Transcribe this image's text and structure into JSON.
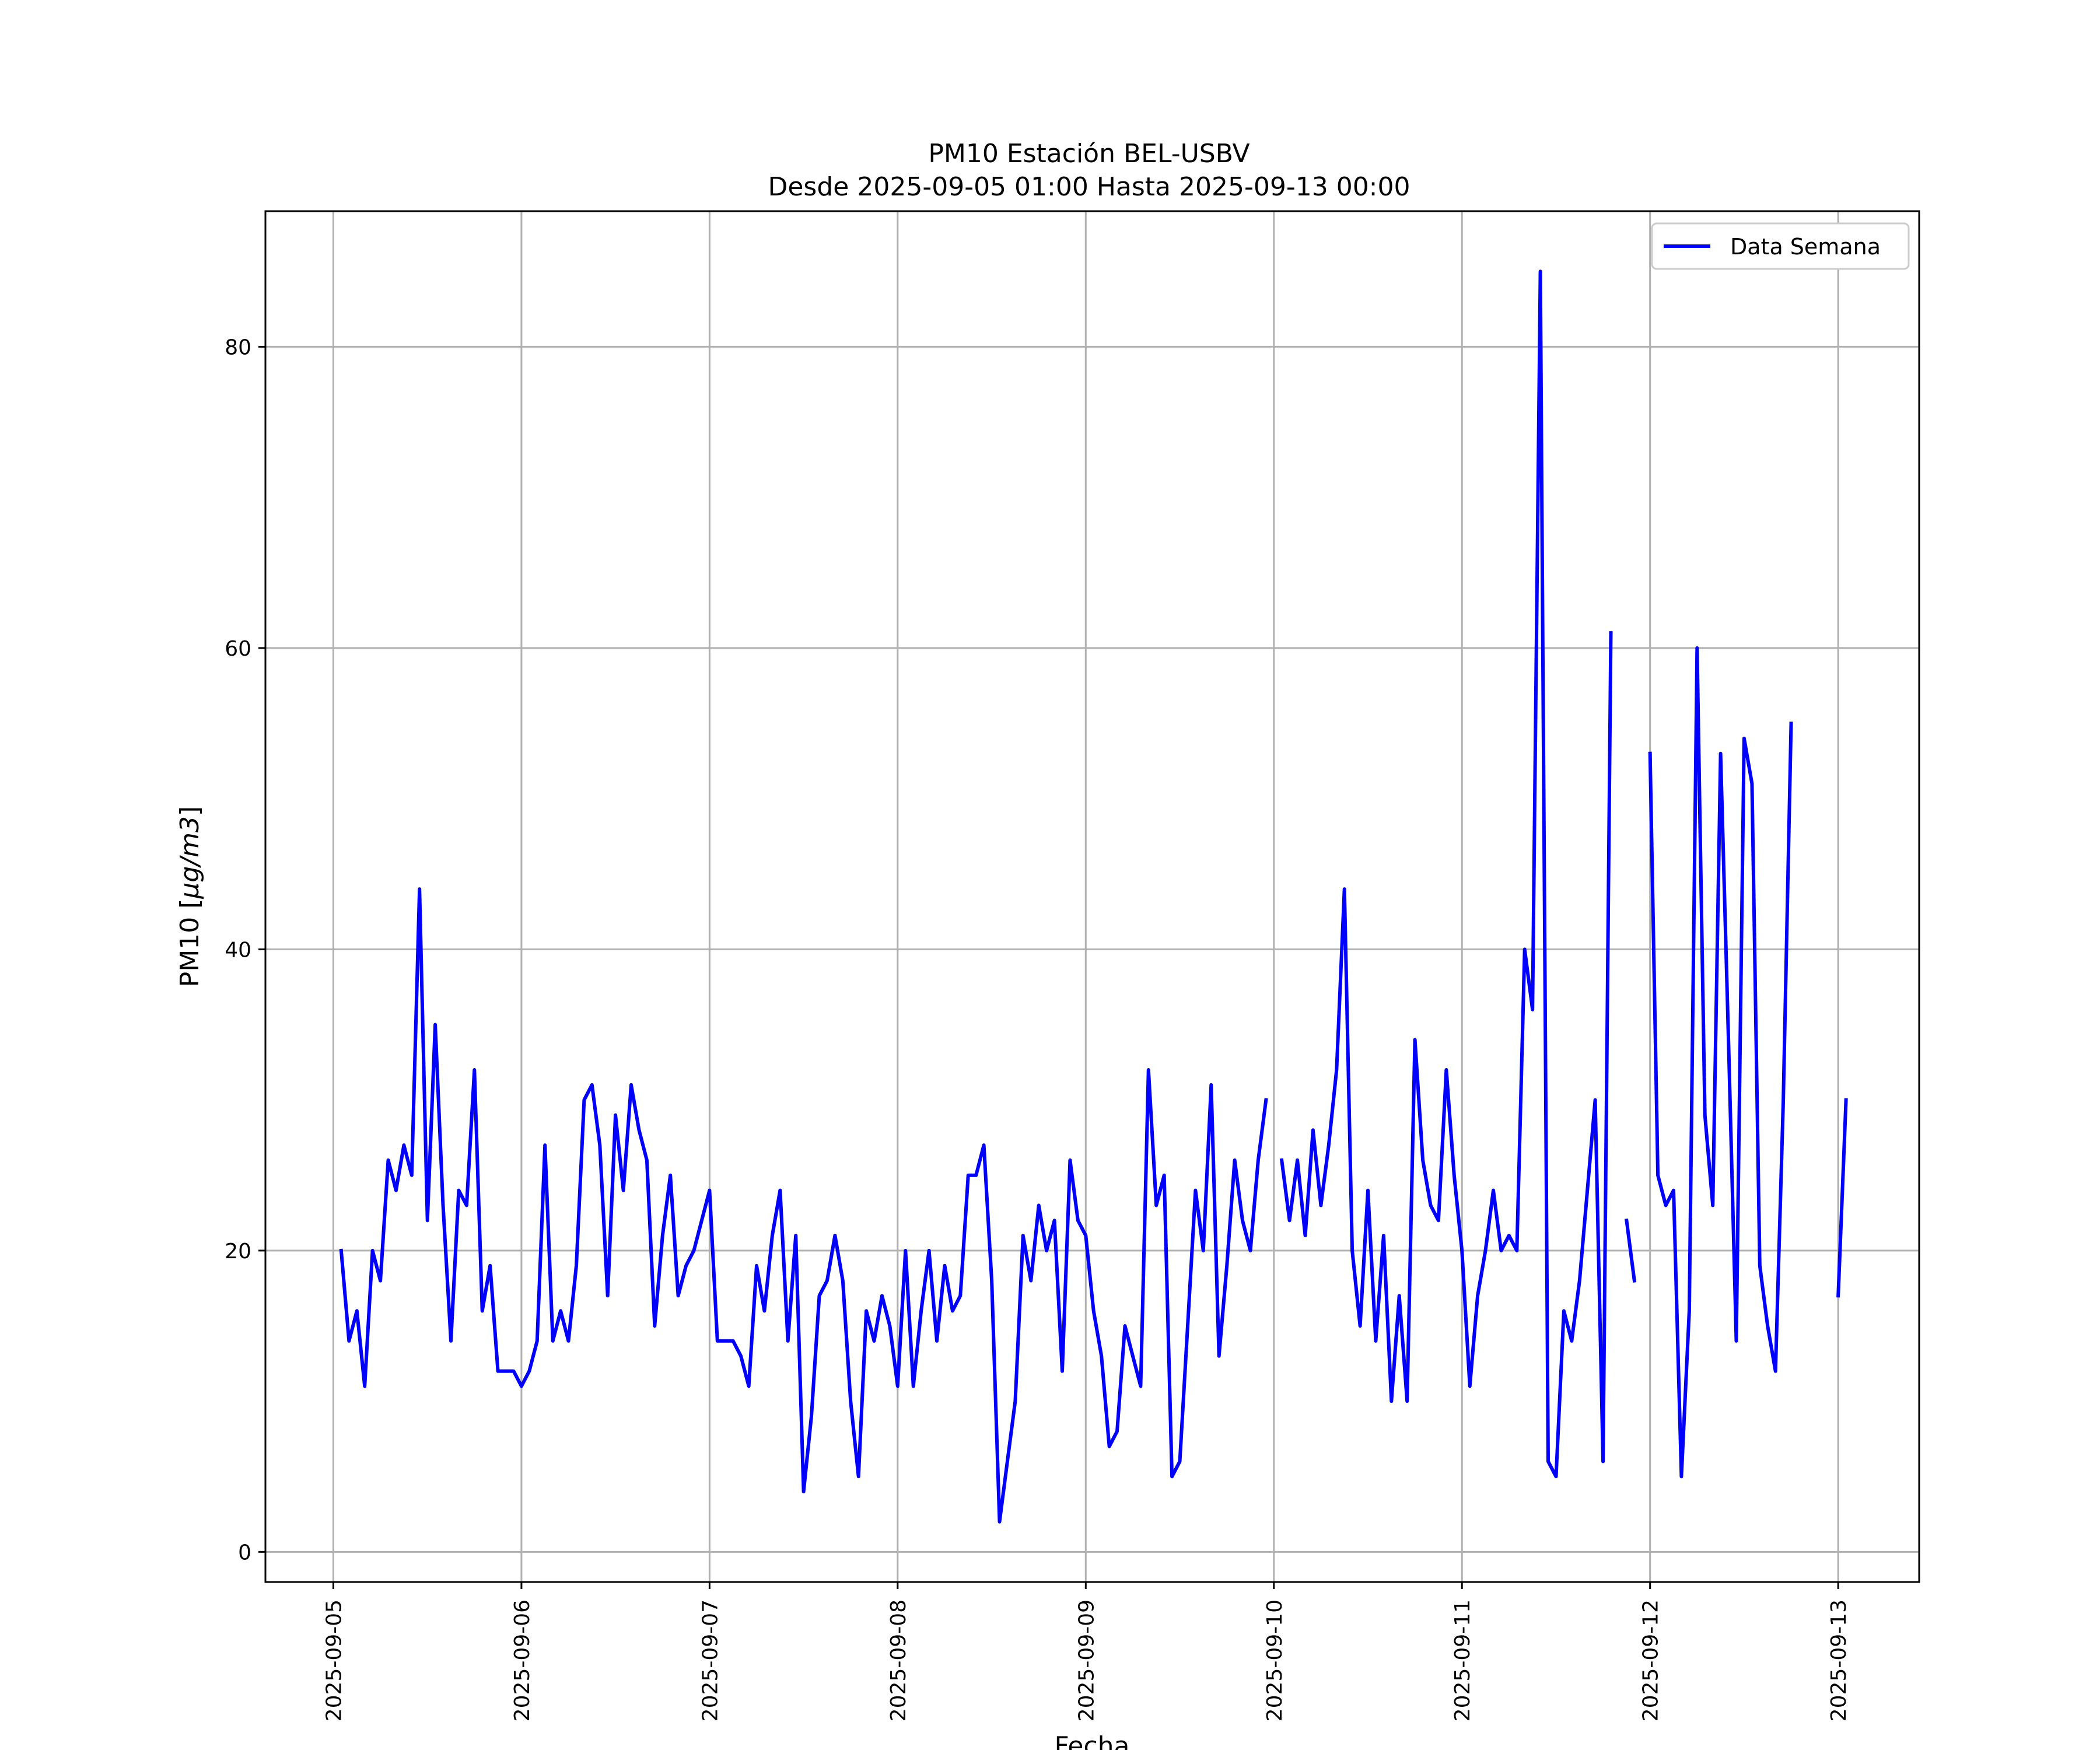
{
  "chart_data": {
    "type": "line",
    "title": "PM10 Estación BEL-USBV",
    "subtitle": "Desde 2025-09-05 01:00 Hasta 2025-09-13 00:00",
    "xlabel": "Fecha",
    "ylabel_prefix": "PM10 [",
    "ylabel_unit": "μg/m3",
    "ylabel_suffix": "]",
    "xlim": [
      "2025-09-04 15:20",
      "2025-09-13 10:20"
    ],
    "ylim": [
      -2,
      89
    ],
    "x_ticks": [
      "2025-09-05",
      "2025-09-06",
      "2025-09-07",
      "2025-09-08",
      "2025-09-09",
      "2025-09-10",
      "2025-09-11",
      "2025-09-12",
      "2025-09-13"
    ],
    "y_ticks": [
      0,
      20,
      40,
      60,
      80
    ],
    "grid": true,
    "legend_position": "top-right",
    "colors": {
      "series": "#0000ff",
      "grid": "#b0b0b0",
      "axes": "#000000"
    },
    "series": [
      {
        "name": "Data Semana",
        "start": "2025-09-05 01:00",
        "step_hours": 1,
        "values": [
          20,
          14,
          16,
          11,
          20,
          18,
          26,
          24,
          27,
          25,
          44,
          22,
          35,
          23,
          14,
          24,
          23,
          32,
          16,
          19,
          12,
          12,
          12,
          11,
          12,
          14,
          27,
          14,
          16,
          14,
          19,
          30,
          31,
          27,
          17,
          29,
          24,
          31,
          28,
          26,
          15,
          21,
          25,
          17,
          19,
          20,
          22,
          24,
          14,
          14,
          14,
          13,
          11,
          19,
          16,
          21,
          24,
          14,
          21,
          4,
          9,
          17,
          18,
          21,
          18,
          10,
          5,
          16,
          14,
          17,
          15,
          11,
          20,
          11,
          16,
          20,
          14,
          19,
          16,
          17,
          25,
          25,
          27,
          18,
          2,
          6,
          10,
          21,
          18,
          23,
          20,
          22,
          12,
          26,
          22,
          21,
          16,
          13,
          7,
          8,
          15,
          13,
          11,
          32,
          23,
          25,
          5,
          6,
          15,
          24,
          20,
          31,
          13,
          19,
          26,
          22,
          20,
          26,
          30,
          null,
          26,
          22,
          26,
          21,
          28,
          23,
          27,
          32,
          44,
          20,
          15,
          24,
          14,
          21,
          10,
          17,
          10,
          34,
          26,
          23,
          22,
          32,
          25,
          20,
          11,
          17,
          20,
          24,
          20,
          21,
          20,
          40,
          36,
          85,
          6,
          5,
          16,
          14,
          18,
          24,
          30,
          6,
          61,
          null,
          22,
          18,
          null,
          53,
          25,
          23,
          24,
          5,
          16,
          60,
          29,
          23,
          53,
          34,
          14,
          54,
          51,
          19,
          15,
          12,
          30,
          55,
          null,
          null,
          null,
          null,
          null,
          17,
          30
        ]
      }
    ]
  }
}
